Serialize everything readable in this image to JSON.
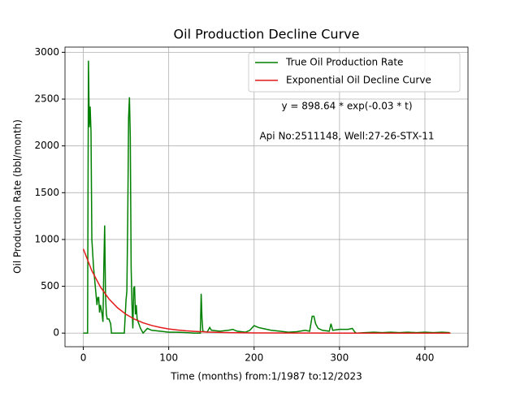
{
  "chart_data": {
    "type": "line",
    "title": "Oil Production Decline Curve",
    "xlabel": "Time (months) from:1/1987 to:12/2023",
    "ylabel": "Oil Production Rate (bbl/month)",
    "annotations": [
      "y = 898.64 * exp(-0.03 * t)",
      "Api No:2511148, Well:27-26-STX-11"
    ],
    "series": [
      {
        "name": "True Oil Production Rate",
        "color": "#008000",
        "x": [
          0,
          5,
          6,
          7,
          8,
          9,
          10,
          12,
          14,
          16,
          17,
          18,
          19,
          20,
          21,
          22,
          23,
          24,
          25,
          26,
          27,
          28,
          30,
          32,
          33,
          40,
          48,
          50,
          51,
          52,
          53,
          54,
          55,
          56,
          57,
          58,
          59,
          60,
          61,
          62,
          63,
          65,
          67,
          70,
          72,
          75,
          80,
          90,
          100,
          110,
          120,
          130,
          137,
          138,
          139,
          140,
          145,
          148,
          150,
          160,
          170,
          175,
          180,
          190,
          195,
          200,
          205,
          210,
          220,
          230,
          240,
          250,
          260,
          265,
          268,
          270,
          272,
          275,
          280,
          288,
          290,
          292,
          300,
          310,
          315,
          318,
          320,
          330,
          340,
          350,
          360,
          370,
          380,
          390,
          400,
          410,
          420,
          429
        ],
        "values": [
          0,
          0,
          2910,
          2200,
          2420,
          2150,
          1000,
          700,
          500,
          300,
          380,
          380,
          220,
          300,
          250,
          200,
          120,
          700,
          1150,
          400,
          200,
          150,
          150,
          100,
          0,
          0,
          0,
          350,
          450,
          1200,
          2300,
          2520,
          2100,
          700,
          300,
          50,
          480,
          500,
          200,
          300,
          150,
          100,
          50,
          0,
          20,
          50,
          30,
          20,
          10,
          10,
          5,
          0,
          0,
          420,
          150,
          20,
          10,
          60,
          30,
          20,
          30,
          40,
          20,
          10,
          30,
          80,
          60,
          50,
          30,
          20,
          10,
          15,
          30,
          20,
          180,
          180,
          100,
          50,
          30,
          20,
          100,
          30,
          40,
          40,
          50,
          10,
          0,
          5,
          10,
          5,
          10,
          5,
          10,
          5,
          10,
          5,
          10,
          5
        ]
      },
      {
        "name": "Exponential Oil Decline Curve",
        "color": "#e31a1c",
        "x": [
          0,
          10,
          20,
          30,
          40,
          50,
          60,
          70,
          80,
          90,
          100,
          110,
          120,
          130,
          140,
          150,
          160,
          170,
          180,
          190,
          200,
          250,
          300,
          350,
          400,
          430
        ],
        "values": [
          898.6,
          665.7,
          493.2,
          365.4,
          270.7,
          200.5,
          148.5,
          110.1,
          81.5,
          60.4,
          44.7,
          33.1,
          24.5,
          18.2,
          13.5,
          10.0,
          7.4,
          5.5,
          4.1,
          3.0,
          2.2,
          0.5,
          0.1,
          0,
          0,
          0
        ]
      }
    ],
    "xlim": [
      -21.45,
      450.45
    ],
    "xticks": [
      0,
      100,
      200,
      300,
      400
    ],
    "ylim": [
      -145.5,
      3055.5
    ],
    "yticks": [
      0,
      500,
      1000,
      1500,
      2000,
      2500,
      3000
    ],
    "grid": true,
    "legend": "upper right"
  }
}
